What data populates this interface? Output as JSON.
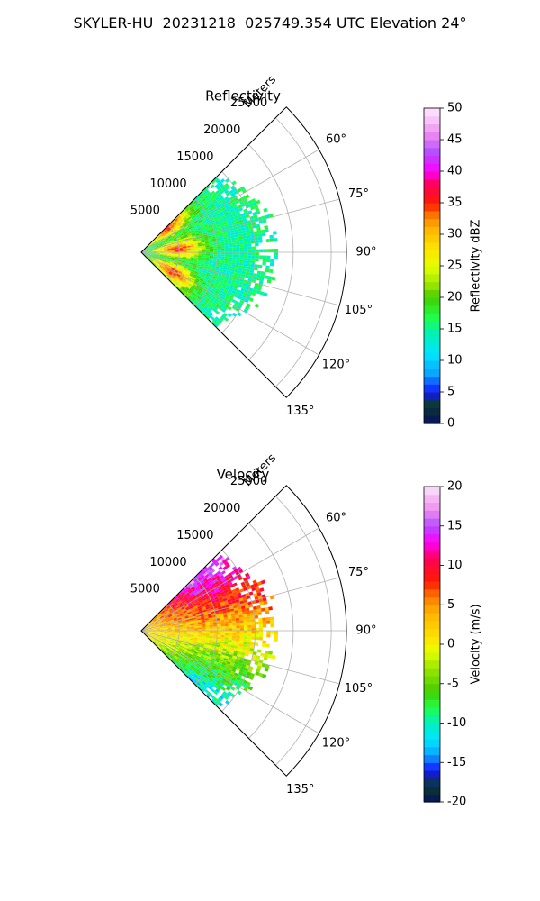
{
  "suptitle": "SKYLER-HU  20231218  025749.354 UTC Elevation 24°",
  "chart_data": [
    {
      "type": "polar-sector",
      "title": "Reflectivity",
      "radial_label": "Meters",
      "theta_range_deg": [
        45,
        135
      ],
      "r_range_m": [
        0,
        27000
      ],
      "r_ticks": [
        5000,
        10000,
        15000,
        20000,
        25000
      ],
      "theta_ticks_deg": [
        60,
        75,
        90,
        105,
        120,
        135
      ],
      "theta_tick_labels": [
        "60°",
        "75°",
        "90°",
        "105°",
        "120°",
        "135°"
      ],
      "grid": true,
      "data_extent_m": {
        "far_edge_min": 10000,
        "far_edge_max": 18000
      },
      "colorbar": {
        "label": "Reflectivity dBZ",
        "range": [
          0,
          50
        ],
        "ticks": [
          0,
          5,
          10,
          15,
          20,
          25,
          30,
          35,
          40,
          45,
          50
        ],
        "stops": [
          {
            "v": 0,
            "c": "#07105e"
          },
          {
            "v": 3,
            "c": "#0a3a2c"
          },
          {
            "v": 5,
            "c": "#1515ff"
          },
          {
            "v": 8,
            "c": "#0aa3ff"
          },
          {
            "v": 11,
            "c": "#00e5ff"
          },
          {
            "v": 14,
            "c": "#00f0c0"
          },
          {
            "v": 17,
            "c": "#22ff44"
          },
          {
            "v": 20,
            "c": "#44cc00"
          },
          {
            "v": 22,
            "c": "#99e600"
          },
          {
            "v": 25,
            "c": "#e6ff00"
          },
          {
            "v": 28,
            "c": "#ffe000"
          },
          {
            "v": 31,
            "c": "#ffb300"
          },
          {
            "v": 33,
            "c": "#ff7a00"
          },
          {
            "v": 35,
            "c": "#ff1a00"
          },
          {
            "v": 38,
            "c": "#ff005a"
          },
          {
            "v": 40,
            "c": "#ff00ff"
          },
          {
            "v": 43,
            "c": "#b34dff"
          },
          {
            "v": 46,
            "c": "#ee8cf0"
          },
          {
            "v": 48,
            "c": "#f5c2f5"
          },
          {
            "v": 50,
            "c": "#fde8fd"
          }
        ]
      }
    },
    {
      "type": "polar-sector",
      "title": "Velocity",
      "radial_label": "Meters",
      "theta_range_deg": [
        45,
        135
      ],
      "r_range_m": [
        0,
        27000
      ],
      "r_ticks": [
        5000,
        10000,
        15000,
        20000,
        25000
      ],
      "theta_ticks_deg": [
        60,
        75,
        90,
        105,
        120,
        135
      ],
      "theta_tick_labels": [
        "60°",
        "75°",
        "90°",
        "105°",
        "120°",
        "135°"
      ],
      "grid": true,
      "data_extent_m": {
        "far_edge_min": 10000,
        "far_edge_max": 18000
      },
      "colorbar": {
        "label": "Velocity (m/s)",
        "range": [
          -20,
          20
        ],
        "ticks": [
          -20,
          -15,
          -10,
          -5,
          0,
          5,
          10,
          15,
          20
        ],
        "stops": [
          {
            "v": -20,
            "c": "#07105e"
          },
          {
            "v": -18,
            "c": "#0a3a2c"
          },
          {
            "v": -16,
            "c": "#1515ff"
          },
          {
            "v": -14,
            "c": "#0aa3ff"
          },
          {
            "v": -12,
            "c": "#00e5ff"
          },
          {
            "v": -10,
            "c": "#00f0c0"
          },
          {
            "v": -8,
            "c": "#22ff44"
          },
          {
            "v": -6,
            "c": "#44cc00"
          },
          {
            "v": -3,
            "c": "#99e600"
          },
          {
            "v": -1,
            "c": "#e6ff00"
          },
          {
            "v": 1,
            "c": "#ffe000"
          },
          {
            "v": 4,
            "c": "#ffb300"
          },
          {
            "v": 6,
            "c": "#ff7a00"
          },
          {
            "v": 8,
            "c": "#ff1a00"
          },
          {
            "v": 11,
            "c": "#ff005a"
          },
          {
            "v": 13,
            "c": "#ff00ff"
          },
          {
            "v": 15,
            "c": "#b34dff"
          },
          {
            "v": 17,
            "c": "#ee8cf0"
          },
          {
            "v": 19,
            "c": "#f5c2f5"
          },
          {
            "v": 20,
            "c": "#fde8fd"
          }
        ]
      }
    }
  ]
}
